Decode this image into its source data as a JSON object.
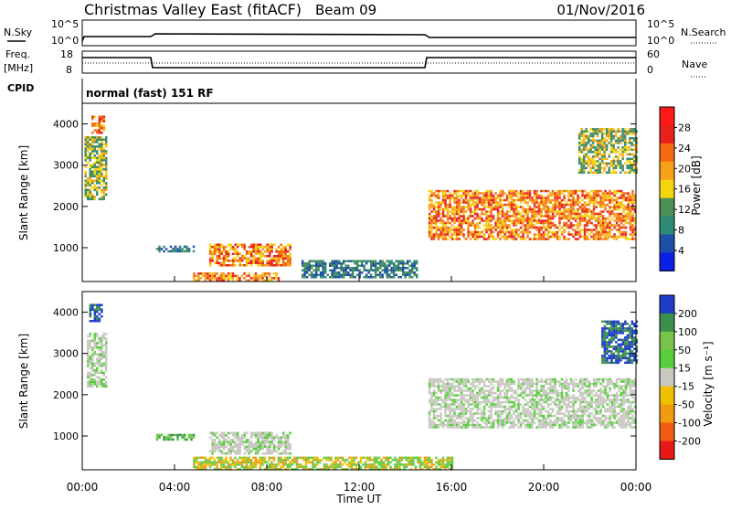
{
  "header": {
    "title": "Christmas Valley East (fitACF)",
    "beam": "Beam 09",
    "date": "01/Nov/2016"
  },
  "noise_panel": {
    "left_label": "N.Sky",
    "right_label": "N.Search",
    "left_ticks": [
      "10^5",
      "10^0"
    ],
    "right_ticks": [
      "10^5",
      "10^0"
    ]
  },
  "freq_panel": {
    "left_label_1": "Freq.",
    "left_label_2": "[MHz]",
    "right_label": "Nave",
    "left_ticks": [
      "18",
      "8"
    ],
    "right_ticks": [
      "60",
      "0"
    ]
  },
  "cpid": {
    "label": "CPID",
    "value": "normal (fast) 151 RF"
  },
  "colors": {
    "power_scale": [
      "#0a20e6",
      "#1f4ea6",
      "#2e8a74",
      "#4c8f55",
      "#f4d30f",
      "#f7a01a",
      "#f46a12",
      "#e8201c",
      "#ff1a1a"
    ],
    "velocity_scale": [
      "#1e3cc8",
      "#3a8f4a",
      "#79c34a",
      "#56cf3a",
      "#c8c8c0",
      "#efc000",
      "#f29a10",
      "#f05a12",
      "#e81818"
    ]
  },
  "chart_data": [
    {
      "type": "heatmap",
      "name": "power",
      "ylabel": "Slant Range [km]",
      "yticks": [
        "1000",
        "2000",
        "3000",
        "4000"
      ],
      "ylim": [
        180,
        4500
      ],
      "xlim": [
        "00:00",
        "24:00"
      ],
      "colorbar_label": "Power [dB]",
      "colorbar_ticks": [
        "4",
        "8",
        "12",
        "16",
        "20",
        "24",
        "28"
      ],
      "regions": [
        {
          "t0": 0.1,
          "t1": 1.0,
          "r0": 2200,
          "r1": 3700,
          "level": "mid"
        },
        {
          "t0": 0.4,
          "t1": 0.9,
          "r0": 3800,
          "r1": 4200,
          "level": "high"
        },
        {
          "t0": 3.2,
          "t1": 4.8,
          "r0": 900,
          "r1": 1050,
          "level": "low"
        },
        {
          "t0": 5.5,
          "t1": 9.0,
          "r0": 600,
          "r1": 1100,
          "level": "high"
        },
        {
          "t0": 4.8,
          "t1": 8.5,
          "r0": 200,
          "r1": 400,
          "level": "high"
        },
        {
          "t0": 9.5,
          "t1": 14.5,
          "r0": 300,
          "r1": 700,
          "level": "low"
        },
        {
          "t0": 15.0,
          "t1": 24.0,
          "r0": 1200,
          "r1": 2400,
          "level": "high"
        },
        {
          "t0": 21.5,
          "t1": 24.0,
          "r0": 2800,
          "r1": 3900,
          "level": "mid"
        }
      ]
    },
    {
      "type": "heatmap",
      "name": "velocity",
      "ylabel": "Slant Range [km]",
      "yticks": [
        "1000",
        "2000",
        "3000",
        "4000"
      ],
      "ylim": [
        180,
        4500
      ],
      "xlabel": "Time UT",
      "xticks": [
        "00:00",
        "04:00",
        "08:00",
        "12:00",
        "16:00",
        "20:00",
        "00:00"
      ],
      "xlim": [
        "00:00",
        "24:00"
      ],
      "colorbar_label": "Velocity [m s⁻¹]",
      "colorbar_ticks": [
        "200",
        "100",
        "50",
        "15",
        "-15",
        "-50",
        "-100",
        "-200"
      ],
      "regions": [
        {
          "t0": 0.3,
          "t1": 0.8,
          "r0": 3800,
          "r1": 4200,
          "level": "pos_high"
        },
        {
          "t0": 0.2,
          "t1": 1.0,
          "r0": 2200,
          "r1": 3500,
          "level": "zero"
        },
        {
          "t0": 3.2,
          "t1": 4.8,
          "r0": 900,
          "r1": 1050,
          "level": "pos_mid"
        },
        {
          "t0": 5.5,
          "t1": 9.0,
          "r0": 600,
          "r1": 1100,
          "level": "zero"
        },
        {
          "t0": 4.8,
          "t1": 16.0,
          "r0": 200,
          "r1": 500,
          "level": "pos_low"
        },
        {
          "t0": 15.0,
          "t1": 24.0,
          "r0": 1200,
          "r1": 2400,
          "level": "zero"
        },
        {
          "t0": 22.5,
          "t1": 24.0,
          "r0": 2800,
          "r1": 3800,
          "level": "pos_high"
        }
      ]
    }
  ]
}
